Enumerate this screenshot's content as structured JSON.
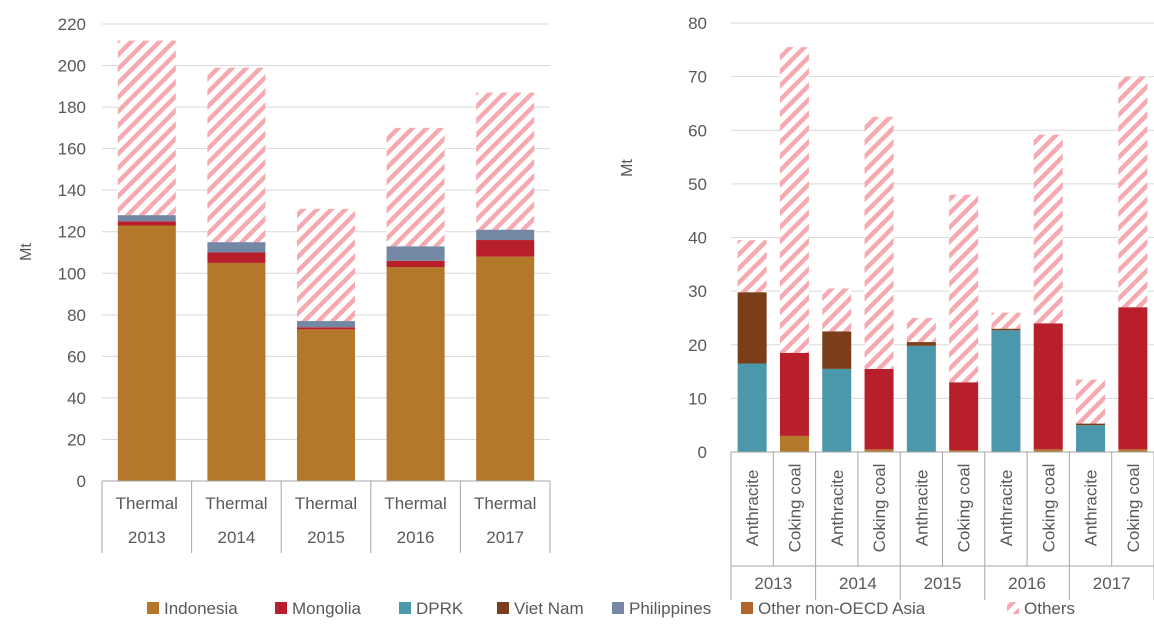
{
  "legend": [
    {
      "name": "Indonesia",
      "color": "#b3782a"
    },
    {
      "name": "Mongolia",
      "color": "#b81f2a"
    },
    {
      "name": "DPRK",
      "color": "#4b97ab"
    },
    {
      "name": "Viet Nam",
      "color": "#7a3e1a"
    },
    {
      "name": "Philippines",
      "color": "#7487a4"
    },
    {
      "name": "Other non-OECD Asia",
      "color": "#b0652a"
    },
    {
      "name": "Others",
      "color": "#f4aab0",
      "pattern": "hatch"
    }
  ],
  "chart_data": [
    {
      "type": "bar",
      "stacked": true,
      "ylabel": "Mt",
      "ylim": [
        0,
        220
      ],
      "yticks": [
        0,
        20,
        40,
        60,
        80,
        100,
        120,
        140,
        160,
        180,
        200,
        220
      ],
      "grid": true,
      "categories": [
        {
          "label": "Thermal",
          "group": "2013"
        },
        {
          "label": "Thermal",
          "group": "2014"
        },
        {
          "label": "Thermal",
          "group": "2015"
        },
        {
          "label": "Thermal",
          "group": "2016"
        },
        {
          "label": "Thermal",
          "group": "2017"
        }
      ],
      "series": [
        {
          "name": "Indonesia",
          "values": [
            123,
            105,
            73,
            103,
            108
          ]
        },
        {
          "name": "Mongolia",
          "values": [
            2,
            5,
            1,
            3,
            8
          ]
        },
        {
          "name": "DPRK",
          "values": [
            0,
            0,
            0,
            0,
            0
          ]
        },
        {
          "name": "Viet Nam",
          "values": [
            0,
            0,
            0,
            0,
            0
          ]
        },
        {
          "name": "Philippines",
          "values": [
            3,
            5,
            3,
            7,
            5
          ]
        },
        {
          "name": "Other non-OECD Asia",
          "values": [
            0,
            0,
            0,
            0,
            0
          ]
        },
        {
          "name": "Others",
          "values": [
            84,
            84,
            54,
            57,
            66
          ]
        }
      ]
    },
    {
      "type": "bar",
      "stacked": true,
      "ylabel": "Mt",
      "ylim": [
        0,
        80
      ],
      "yticks": [
        0,
        10,
        20,
        30,
        40,
        50,
        60,
        70,
        80
      ],
      "grid": true,
      "categories": [
        "Anthracite",
        "Coking coal",
        "Anthracite",
        "Coking coal",
        "Anthracite",
        "Coking coal",
        "Anthracite",
        "Coking coal",
        "Anthracite",
        "Coking coal"
      ],
      "groups": [
        "2013",
        "2014",
        "2015",
        "2016",
        "2017"
      ],
      "series": [
        {
          "name": "Indonesia",
          "values": [
            0,
            3,
            0,
            0.5,
            0,
            0.3,
            0,
            0.5,
            0,
            0.5
          ]
        },
        {
          "name": "Mongolia",
          "values": [
            0,
            15.5,
            0,
            15,
            0,
            12.7,
            0,
            23.5,
            0,
            26.5
          ]
        },
        {
          "name": "DPRK",
          "values": [
            16.5,
            0,
            15.5,
            0,
            19.8,
            0,
            22.7,
            0,
            5,
            0
          ]
        },
        {
          "name": "Viet Nam",
          "values": [
            13.3,
            0,
            7,
            0,
            0.7,
            0,
            0.3,
            0,
            0.3,
            0
          ]
        },
        {
          "name": "Philippines",
          "values": [
            0,
            0,
            0,
            0,
            0,
            0,
            0,
            0,
            0,
            0
          ]
        },
        {
          "name": "Other non-OECD Asia",
          "values": [
            0,
            0,
            0,
            0,
            0,
            0,
            0,
            0,
            0,
            0
          ]
        },
        {
          "name": "Others",
          "values": [
            9.7,
            57,
            8,
            47,
            4.5,
            35,
            3,
            35.2,
            8.2,
            43
          ]
        }
      ]
    }
  ]
}
